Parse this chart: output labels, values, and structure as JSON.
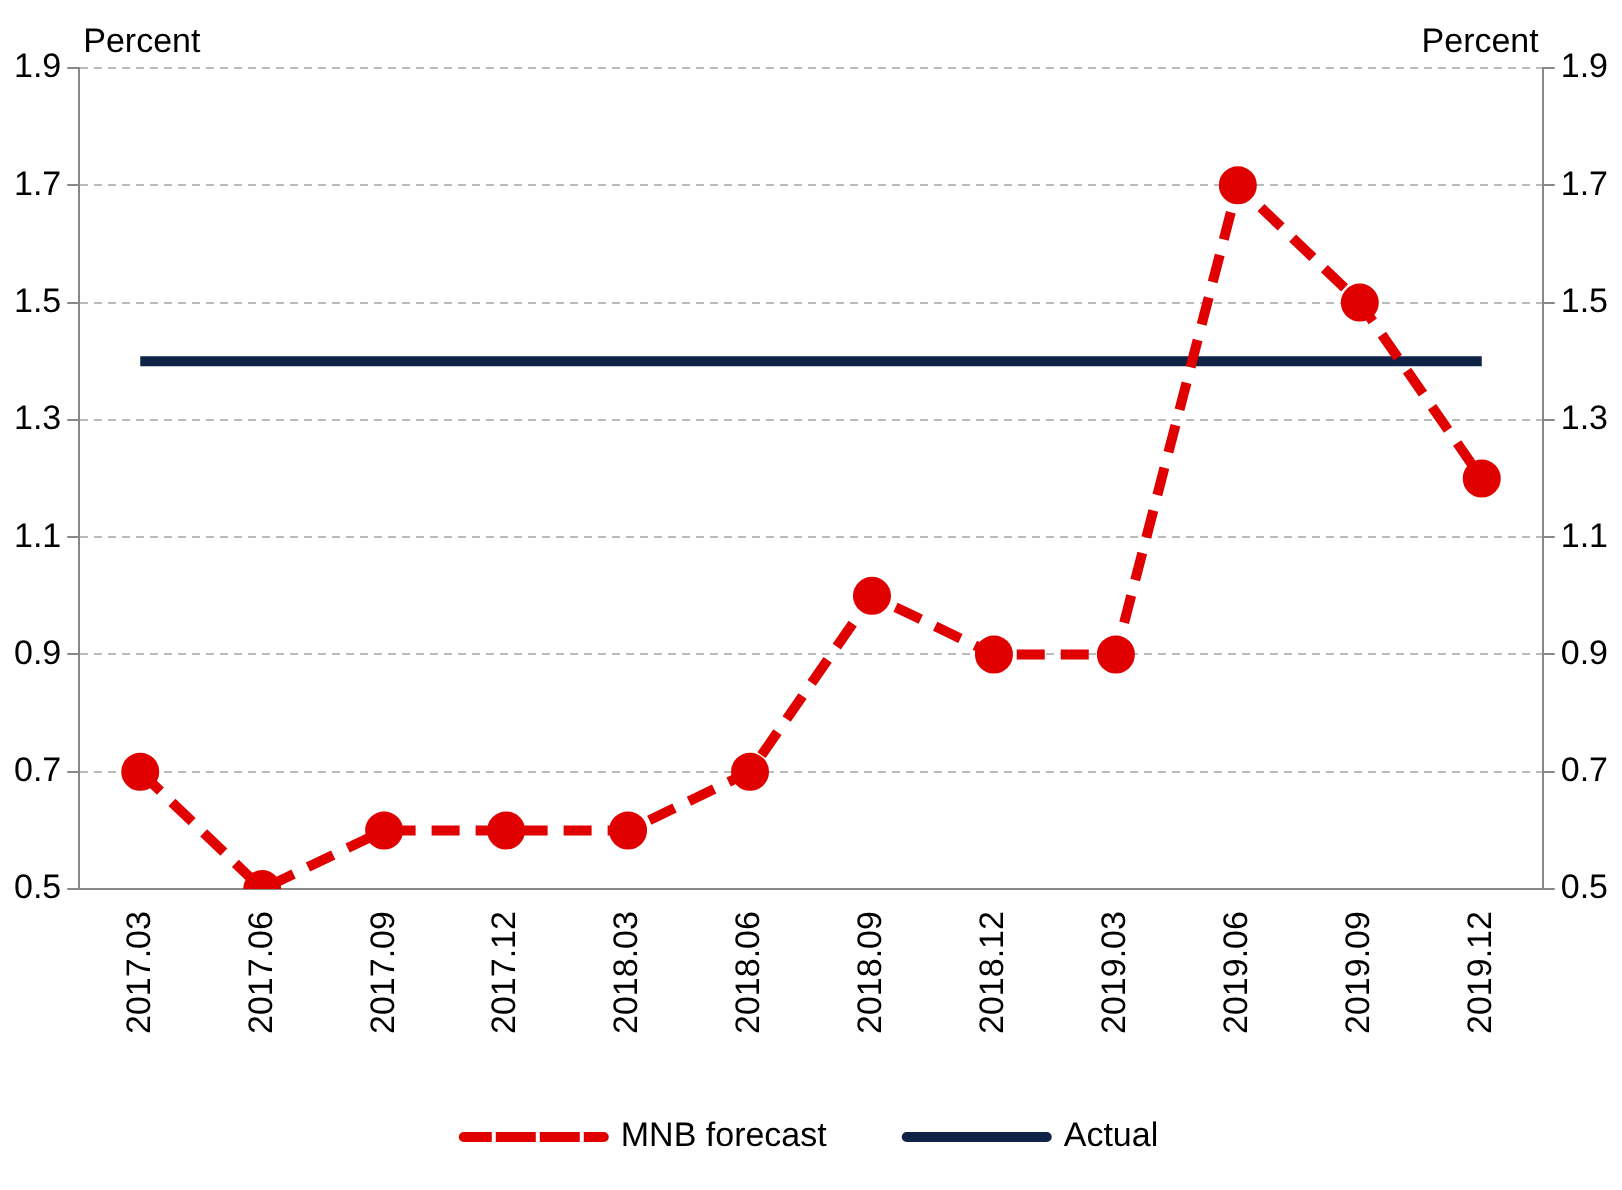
{
  "chart_data": {
    "type": "line",
    "ylabel": "Percent",
    "y2label": "Percent",
    "categories": [
      "2017.03",
      "2017.06",
      "2017.09",
      "2017.12",
      "2018.03",
      "2018.06",
      "2018.09",
      "2018.12",
      "2019.03",
      "2019.06",
      "2019.09",
      "2019.12"
    ],
    "series": [
      {
        "name": "MNB forecast",
        "color": "#e00000",
        "values": [
          0.7,
          0.5,
          0.6,
          0.6,
          0.6,
          0.7,
          1.0,
          0.9,
          0.9,
          1.7,
          1.5,
          1.2
        ],
        "line_style": "dashed",
        "marker": "circle"
      },
      {
        "name": "Actual",
        "color": "#0f2346",
        "values": [
          1.4,
          1.4,
          1.4,
          1.4,
          1.4,
          1.4,
          1.4,
          1.4,
          1.4,
          1.4,
          1.4,
          1.4
        ],
        "line_style": "solid",
        "marker": "none"
      }
    ],
    "ylim": [
      0.5,
      1.9
    ],
    "yticks": [
      0.5,
      0.7,
      0.9,
      1.1,
      1.3,
      1.5,
      1.7,
      1.9
    ],
    "y2lim": [
      0.5,
      1.9
    ],
    "y2ticks": [
      0.5,
      0.7,
      0.9,
      1.1,
      1.3,
      1.5,
      1.7,
      1.9
    ],
    "grid": "y",
    "legend": "bottom"
  }
}
